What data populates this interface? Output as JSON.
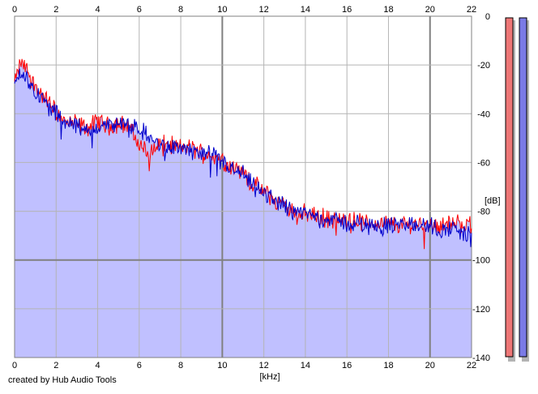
{
  "app": {
    "credit": "created by Hub Audio Tools"
  },
  "colors": {
    "plot_bg": "#ffffff",
    "fill": "#c0c0ff",
    "grid_major": "#808080",
    "grid_minor": "#b4b4b4",
    "left_channel": "#ff0000",
    "right_channel": "#0000cc",
    "meter_left": "#ee7777",
    "meter_right": "#7a7ae6",
    "meter_shadow": "#b4b4b4"
  },
  "meters": [
    {
      "name": "left-channel-level-meter",
      "fill_fraction": 1.0
    },
    {
      "name": "right-channel-level-meter",
      "fill_fraction": 1.0
    }
  ],
  "chart_data": {
    "type": "area",
    "title": "",
    "xlabel": "[kHz]",
    "ylabel": "[dB]",
    "xlim": [
      0,
      22
    ],
    "ylim": [
      -140,
      0
    ],
    "x_ticks": [
      0,
      2,
      4,
      6,
      8,
      10,
      12,
      14,
      16,
      18,
      20,
      22
    ],
    "y_ticks": [
      0,
      -20,
      -40,
      -60,
      -80,
      -100,
      -120,
      -140
    ],
    "grid": true,
    "series": [
      {
        "channel": "left",
        "color": "#ff0000",
        "x": [
          0,
          0.3,
          0.6,
          1.0,
          1.5,
          2.0,
          2.5,
          3.0,
          3.5,
          4.0,
          4.5,
          5.0,
          5.5,
          6.0,
          6.5,
          7.0,
          7.5,
          8.0,
          8.5,
          9.0,
          9.5,
          10.0,
          10.5,
          11.0,
          11.5,
          12.0,
          12.5,
          13.0,
          13.5,
          14.0,
          14.5,
          15.0,
          15.5,
          16.0,
          16.5,
          17.0,
          17.5,
          18.0,
          18.5,
          19.0,
          19.5,
          20.0,
          20.5,
          21.0,
          21.5,
          22.0
        ],
        "y": [
          -27,
          -19,
          -22,
          -29,
          -34,
          -39,
          -44,
          -44,
          -46,
          -43,
          -45,
          -44,
          -45,
          -53,
          -56,
          -52,
          -53,
          -54,
          -54,
          -56,
          -57,
          -59,
          -62,
          -64,
          -69,
          -72,
          -75,
          -78,
          -80,
          -81,
          -82,
          -83,
          -84,
          -84,
          -84,
          -85,
          -85,
          -85,
          -86,
          -85,
          -85,
          -85,
          -86,
          -85,
          -85,
          -86
        ],
        "spread": [
          2,
          3,
          3,
          3,
          3,
          3,
          3,
          3,
          3,
          3,
          3,
          3,
          3,
          3,
          4,
          3,
          3,
          3,
          3,
          3,
          3,
          3,
          3,
          3,
          3,
          3,
          3,
          3,
          3,
          3,
          3,
          3,
          3,
          3,
          3,
          3,
          3,
          3,
          3,
          3,
          3,
          3,
          3,
          3,
          3,
          3
        ]
      },
      {
        "channel": "right",
        "color": "#0000cc",
        "x": [
          0,
          0.3,
          0.6,
          1.0,
          1.5,
          2.0,
          2.5,
          3.0,
          3.5,
          4.0,
          4.5,
          5.0,
          5.5,
          6.0,
          6.5,
          7.0,
          7.5,
          8.0,
          8.5,
          9.0,
          9.5,
          10.0,
          10.5,
          11.0,
          11.5,
          12.0,
          12.5,
          13.0,
          13.5,
          14.0,
          14.5,
          15.0,
          15.5,
          16.0,
          16.5,
          17.0,
          17.5,
          18.0,
          18.5,
          19.0,
          19.5,
          20.0,
          20.5,
          21.0,
          21.5,
          22.0
        ],
        "y": [
          -28,
          -22,
          -26,
          -31,
          -36,
          -40,
          -43,
          -45,
          -48,
          -45,
          -45,
          -44,
          -46,
          -46,
          -50,
          -53,
          -54,
          -54,
          -55,
          -57,
          -57,
          -60,
          -63,
          -65,
          -70,
          -73,
          -75,
          -78,
          -80,
          -81,
          -82,
          -83,
          -84,
          -85,
          -85,
          -86,
          -86,
          -86,
          -86,
          -85,
          -86,
          -86,
          -88,
          -87,
          -88,
          -91
        ],
        "spread": [
          2,
          3,
          3,
          3,
          3,
          3,
          3,
          3,
          3,
          3,
          3,
          3,
          3,
          3,
          3,
          3,
          3,
          3,
          3,
          3,
          3,
          3,
          3,
          3,
          3,
          3,
          3,
          3,
          3,
          3,
          3,
          3,
          3,
          3,
          3,
          3,
          3,
          3,
          3,
          3,
          3,
          3,
          3,
          3,
          3,
          4
        ]
      }
    ]
  }
}
